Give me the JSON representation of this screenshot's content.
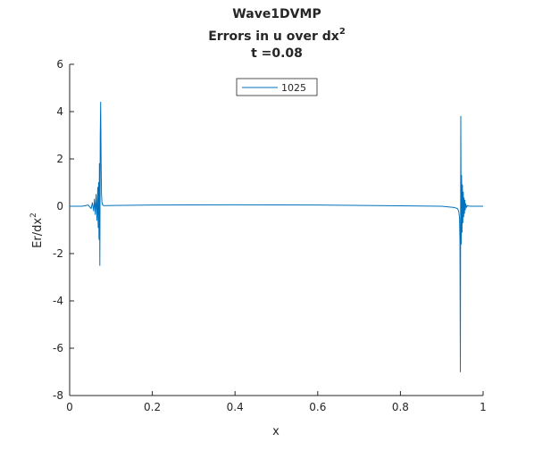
{
  "chart_data": {
    "type": "line",
    "title_lines": [
      "Wave1DVMP",
      "Errors in u over dx",
      "t =0.08"
    ],
    "title_superscript": "2",
    "xlabel": "x",
    "ylabel": "Er/dx",
    "ylabel_superscript": "2",
    "xlim": [
      0,
      1
    ],
    "ylim": [
      -8,
      6
    ],
    "xticks": [
      "0",
      "0.2",
      "0.4",
      "0.6",
      "0.8",
      "1"
    ],
    "yticks": [
      "6",
      "4",
      "2",
      "0",
      "-2",
      "-4",
      "-6",
      "-8"
    ],
    "grid": false,
    "legend_position": "top-center",
    "series": [
      {
        "name": "1025",
        "color": "#0072BD",
        "x": [
          0,
          0.03,
          0.045,
          0.052,
          0.055,
          0.058,
          0.06,
          0.062,
          0.064,
          0.066,
          0.068,
          0.069,
          0.07,
          0.071,
          0.072,
          0.073,
          0.074,
          0.075,
          0.076,
          0.077,
          0.078,
          0.079,
          0.08,
          0.082,
          0.085,
          0.09,
          0.2,
          0.4,
          0.6,
          0.8,
          0.9,
          0.93,
          0.938,
          0.941,
          0.943,
          0.944,
          0.945,
          0.946,
          0.947,
          0.948,
          0.949,
          0.95,
          0.951,
          0.952,
          0.953,
          0.954,
          0.955,
          0.956,
          0.957,
          0.958,
          0.96,
          0.962,
          0.965,
          0.97,
          1
        ],
        "y": [
          0,
          0,
          0.05,
          -0.1,
          0.15,
          -0.2,
          0.3,
          -0.35,
          0.5,
          -0.6,
          0.8,
          -0.9,
          1.0,
          -1.4,
          1.8,
          -2.5,
          3.0,
          4.4,
          2.0,
          0.5,
          0.2,
          0.1,
          0.05,
          0.03,
          0.03,
          0.03,
          0.05,
          0.06,
          0.05,
          0.02,
          0,
          -0.05,
          -0.1,
          -0.2,
          -0.5,
          -1.5,
          -7.0,
          3.8,
          -1.6,
          1.3,
          -1.1,
          0.9,
          -0.7,
          0.6,
          -0.45,
          0.35,
          -0.3,
          0.25,
          -0.15,
          0.1,
          -0.05,
          0.03,
          0.01,
          0,
          0
        ]
      }
    ]
  }
}
